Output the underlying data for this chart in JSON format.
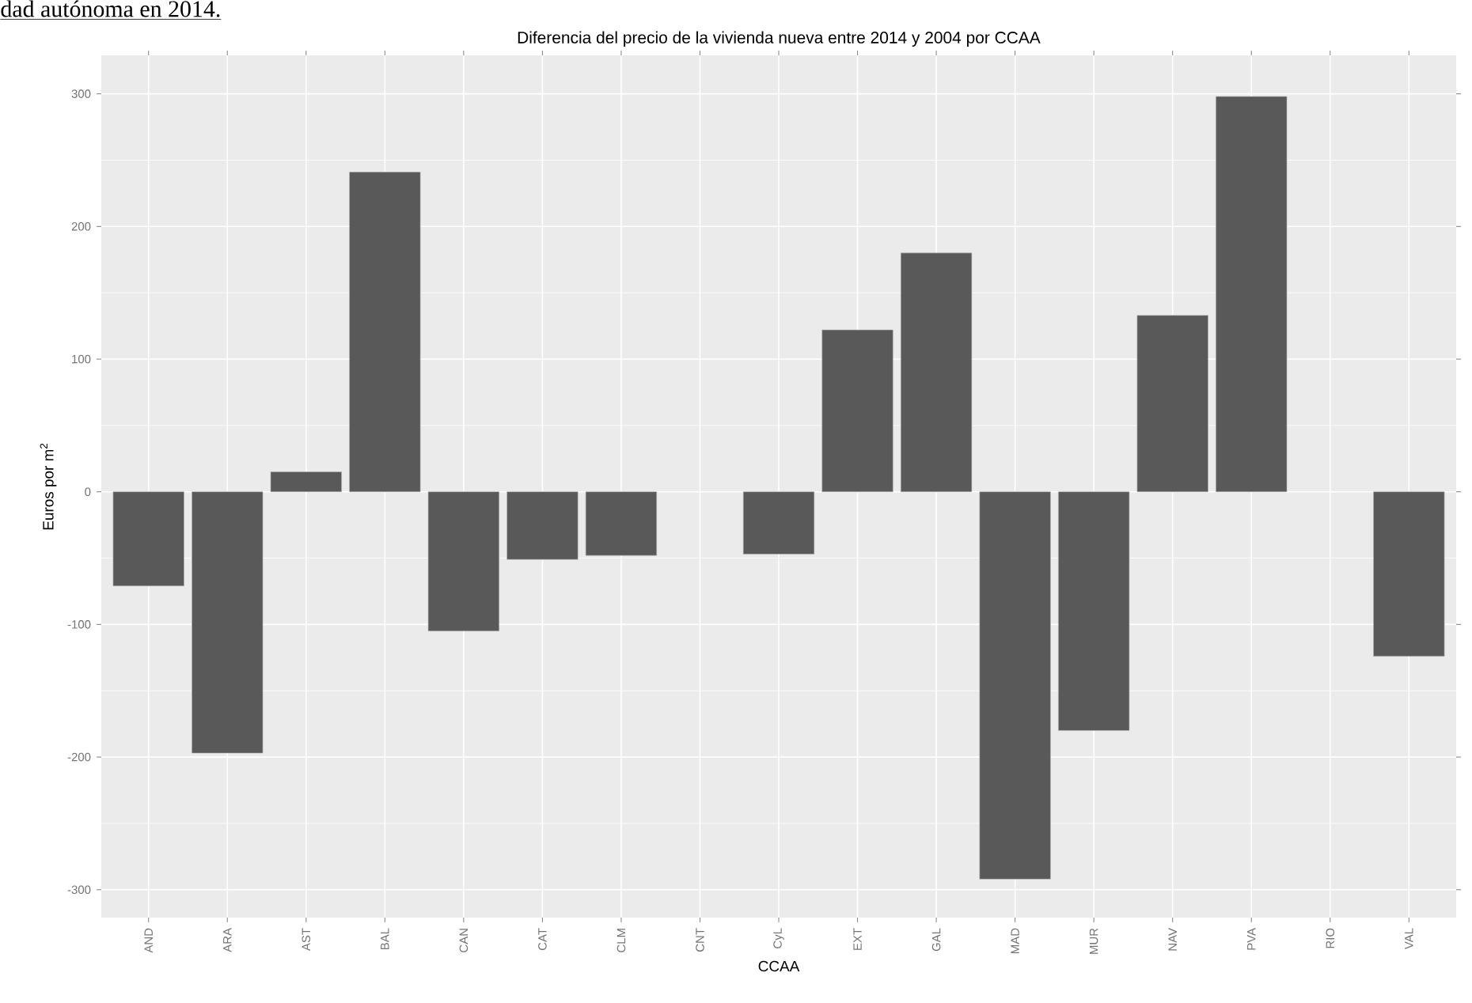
{
  "chart_data": {
    "type": "bar",
    "title": "Diferencia del precio de la vivienda nueva entre 2014 y 2004 por CCAA",
    "xlabel": "CCAA",
    "ylabel": "Euros por m$^{2}$",
    "annotations": [
      "dad autónoma en 2014."
    ],
    "categories": [
      "AND",
      "ARA",
      "AST",
      "BAL",
      "CAN",
      "CAT",
      "CLM",
      "CNT",
      "CyL",
      "EXT",
      "GAL",
      "MAD",
      "MUR",
      "NAV",
      "PVA",
      "RIO",
      "VAL"
    ],
    "values": [
      -71,
      -197,
      15,
      241,
      -105,
      -51,
      -48,
      null,
      -47,
      122,
      180,
      -292,
      -180,
      133,
      298,
      null,
      -124
    ],
    "color": "#595959",
    "ylim": [
      -321,
      329
    ],
    "yticks": [
      -300,
      -200,
      -100,
      0,
      100,
      200,
      300
    ],
    "grid": true
  }
}
